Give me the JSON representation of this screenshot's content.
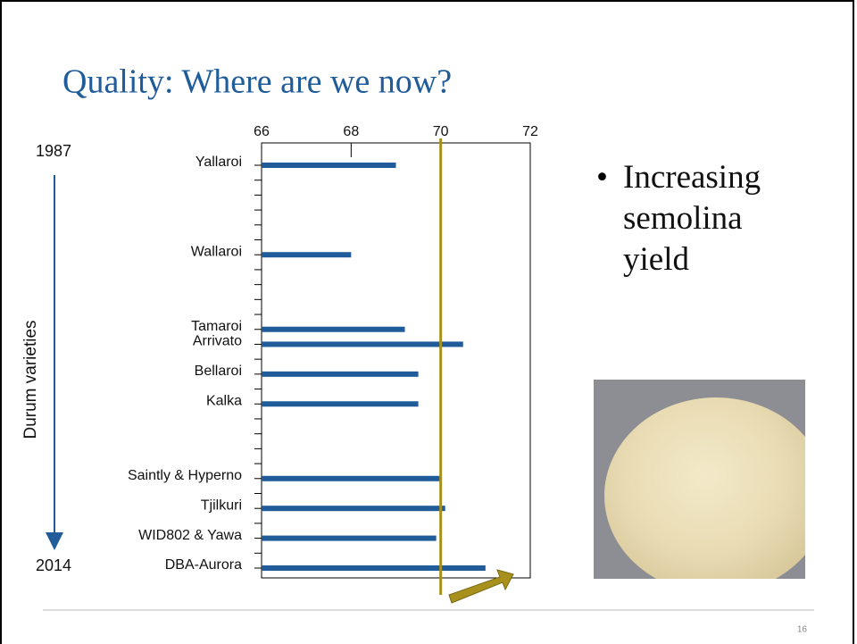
{
  "chart_data": {
    "type": "bar",
    "orientation": "horizontal",
    "title": "Quality: Where are we now?",
    "y_label": "Durum varieties",
    "annotations": [
      "1987",
      "2014"
    ],
    "categories": [
      "Yallaroi",
      null,
      null,
      null,
      null,
      null,
      "Wallaroi",
      null,
      null,
      null,
      null,
      "Tamaroi",
      "Arrivato",
      null,
      "Bellaroi",
      null,
      "Kalka",
      null,
      null,
      null,
      null,
      "Saintly & Hyperno",
      null,
      "Tjilkuri",
      null,
      "WID802 & Yawa",
      null,
      "DBA-Aurora"
    ],
    "values": [
      69.0,
      null,
      null,
      null,
      null,
      null,
      68.0,
      null,
      null,
      null,
      null,
      69.2,
      70.5,
      null,
      69.5,
      null,
      69.5,
      null,
      null,
      null,
      null,
      70.0,
      null,
      70.1,
      null,
      69.9,
      null,
      71.0
    ],
    "color": "#1f5c99",
    "xlim": [
      66,
      72
    ],
    "xticks": [
      66,
      68,
      70,
      72
    ],
    "reference_line": {
      "value": 70,
      "color": "#a8901c"
    }
  },
  "slide": {
    "bullet": "Increasing semolina yield",
    "page_number": "16"
  }
}
